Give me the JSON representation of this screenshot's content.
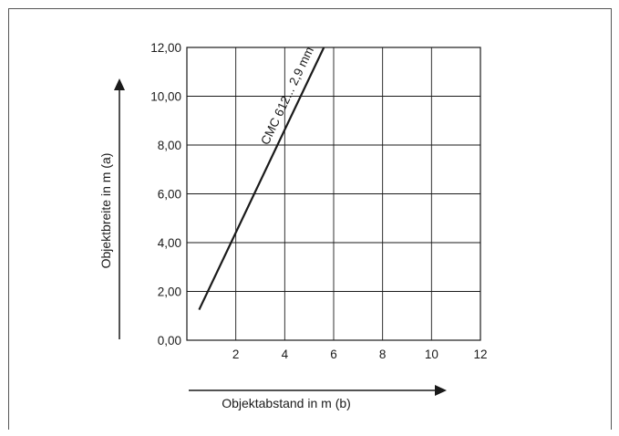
{
  "chart_data": {
    "type": "line",
    "xlabel": "Objektabstand in m (b)",
    "ylabel": "Objektbreite in m (a)",
    "xlim": [
      0,
      12
    ],
    "ylim": [
      0,
      12
    ],
    "x_ticks": [
      "2",
      "4",
      "6",
      "8",
      "10",
      "12"
    ],
    "y_ticks": [
      "0,00",
      "2,00",
      "4,00",
      "6,00",
      "8,00",
      "10,00",
      "12,00"
    ],
    "grid": true,
    "series": [
      {
        "name": "CMC 612... 2,9 mm",
        "x": [
          0.5,
          5.6
        ],
        "y": [
          1.25,
          12.0
        ]
      }
    ]
  }
}
